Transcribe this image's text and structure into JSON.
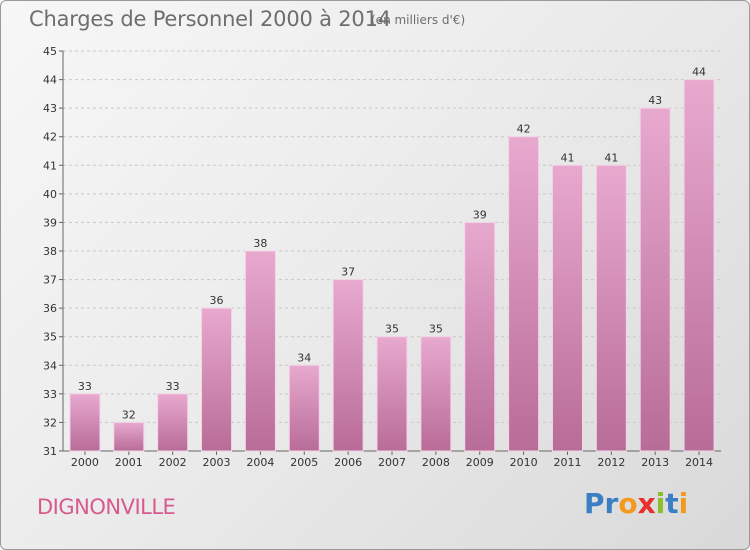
{
  "title": "Charges de Personnel 2000 à 2014",
  "subtitle": "(en milliers d'€)",
  "commune": "DIGNONVILLE",
  "logo": {
    "letters": [
      "P",
      "r",
      "o",
      "x",
      "i",
      "t",
      "i"
    ],
    "colors": [
      "#3a7fc4",
      "#3a7fc4",
      "#f39a1e",
      "#e6302b",
      "#8bbd2f",
      "#3a7fc4",
      "#f39a1e"
    ]
  },
  "colors": {
    "bar_top": "#e8a9cf",
    "bar_bottom": "#b86c98",
    "grid": "#c8c8c8"
  },
  "chart_data": {
    "type": "bar",
    "title": "Charges de Personnel 2000 à 2014",
    "subtitle": "(en milliers d'€)",
    "xlabel": "",
    "ylabel": "",
    "categories": [
      "2000",
      "2001",
      "2002",
      "2003",
      "2004",
      "2005",
      "2006",
      "2007",
      "2008",
      "2009",
      "2010",
      "2011",
      "2012",
      "2013",
      "2014"
    ],
    "values": [
      33,
      32,
      33,
      36,
      38,
      34,
      37,
      35,
      35,
      39,
      42,
      41,
      41,
      43,
      44
    ],
    "ylim": [
      31,
      45
    ],
    "yticks": [
      31,
      32,
      33,
      34,
      35,
      36,
      37,
      38,
      39,
      40,
      41,
      42,
      43,
      44,
      45
    ],
    "grid": true
  }
}
